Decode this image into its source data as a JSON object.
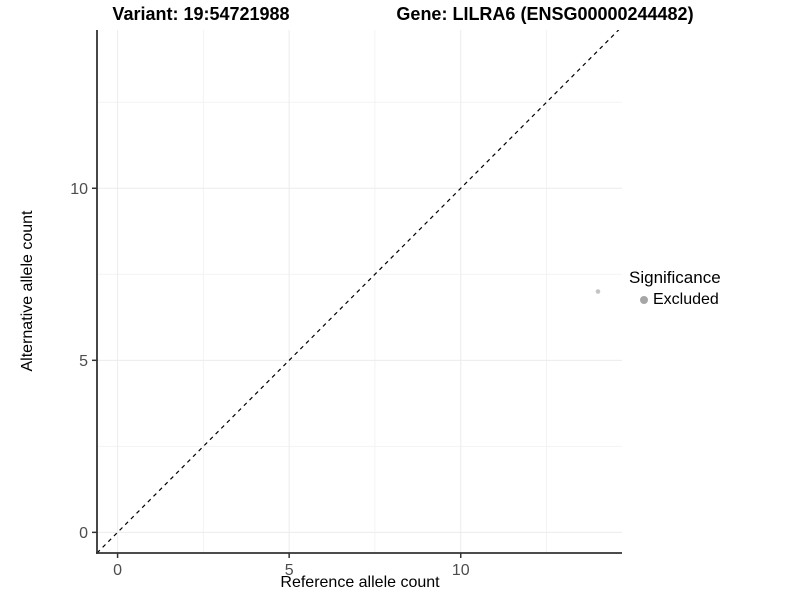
{
  "chart_data": {
    "type": "scatter",
    "titles": {
      "left": "Variant: 19:54721988",
      "right": "Gene: LILRA6 (ENSG00000244482)"
    },
    "xlabel": "Reference allele count",
    "ylabel": "Alternative allele count",
    "x_ticks": [
      0,
      5,
      10
    ],
    "y_ticks": [
      0,
      5,
      10
    ],
    "minor_ticks": [
      2.5,
      7.5,
      12.5
    ],
    "xlim": [
      -0.6,
      14.7
    ],
    "ylim": [
      -0.6,
      14.6
    ],
    "points": [
      {
        "x": 14,
        "y": 7,
        "series": "Excluded"
      }
    ],
    "abline": {
      "slope": 1,
      "intercept": 0,
      "style": "dashed",
      "color": "#000000"
    },
    "grid": {
      "major_color": "#ececec",
      "minor_color": "#f3f3f3",
      "background": "#ffffff"
    },
    "axis_color": "#333333",
    "tick_label_color": "#4d4d4d",
    "point_color": "#c4c4c4",
    "point_radius": 2.3,
    "legend": {
      "title": "Significance",
      "position": "right",
      "entries": [
        {
          "label": "Excluded",
          "color": "#a6a6a6"
        }
      ]
    }
  }
}
